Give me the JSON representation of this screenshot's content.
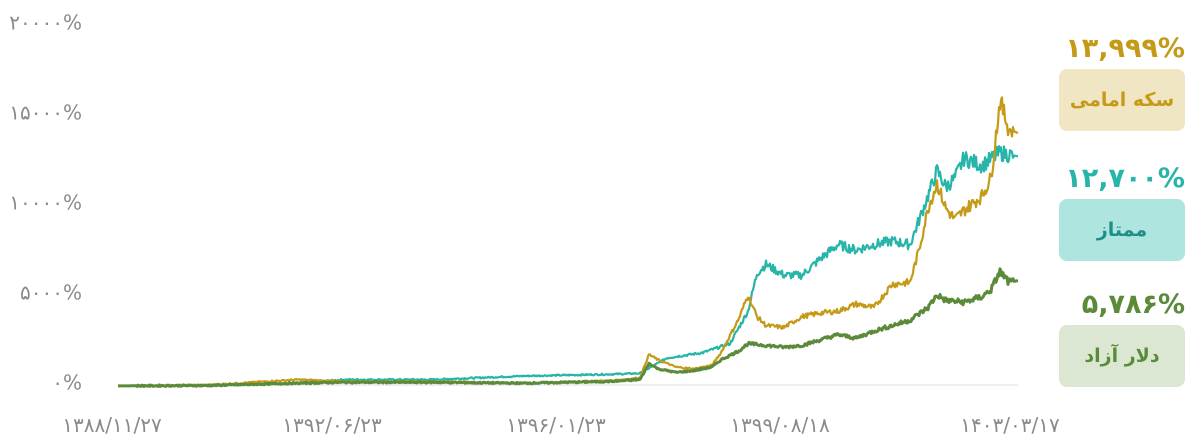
{
  "chart_data": {
    "type": "line",
    "ylim": [
      0,
      20000
    ],
    "y_ticks": [
      {
        "value": 20000,
        "label": "۲۰۰۰۰%"
      },
      {
        "value": 15000,
        "label": "۱۵۰۰۰%"
      },
      {
        "value": 10000,
        "label": "۱۰۰۰۰%"
      },
      {
        "value": 5000,
        "label": "۵۰۰۰%"
      },
      {
        "value": 0,
        "label": "۰%"
      }
    ],
    "x_ticks": [
      "۱۳۸۸/۱۱/۲۷",
      "۱۳۹۲/۰۶/۲۳",
      "۱۳۹۶/۰۱/۲۳",
      "۱۳۹۹/۰۸/۱۸",
      "۱۴۰۳/۰۳/۱۷"
    ],
    "x_range": [
      0,
      100
    ],
    "series": [
      {
        "name": "ممتاز",
        "color": "#26b5a8",
        "final_value": "۱۲,۷۰۰%",
        "points": [
          [
            0,
            -50
          ],
          [
            10,
            -20
          ],
          [
            20,
            100
          ],
          [
            25,
            300
          ],
          [
            35,
            300
          ],
          [
            45,
            500
          ],
          [
            55,
            600
          ],
          [
            58,
            650
          ],
          [
            61,
            1500
          ],
          [
            65,
            1800
          ],
          [
            68,
            2300
          ],
          [
            70,
            4100
          ],
          [
            71,
            6200
          ],
          [
            72,
            6700
          ],
          [
            74,
            6100
          ],
          [
            76,
            6100
          ],
          [
            78,
            7000
          ],
          [
            80,
            7800
          ],
          [
            82,
            7500
          ],
          [
            84,
            7800
          ],
          [
            86,
            8000
          ],
          [
            88,
            7800
          ],
          [
            90,
            10500
          ],
          [
            91,
            11900
          ],
          [
            92,
            11000
          ],
          [
            93,
            11500
          ],
          [
            94,
            12600
          ],
          [
            96,
            12200
          ],
          [
            98,
            12900
          ],
          [
            100,
            12700
          ]
        ]
      },
      {
        "name": "سکه امامی",
        "color": "#c49a17",
        "final_value": "۱۳,۹۹۹%",
        "points": [
          [
            0,
            -50
          ],
          [
            10,
            0
          ],
          [
            20,
            300
          ],
          [
            25,
            200
          ],
          [
            35,
            200
          ],
          [
            45,
            100
          ],
          [
            55,
            250
          ],
          [
            58,
            400
          ],
          [
            59,
            1700
          ],
          [
            60,
            1400
          ],
          [
            62,
            1000
          ],
          [
            64,
            900
          ],
          [
            66,
            1100
          ],
          [
            67,
            1800
          ],
          [
            69,
            3700
          ],
          [
            70,
            5000
          ],
          [
            71,
            3800
          ],
          [
            72,
            3300
          ],
          [
            74,
            3200
          ],
          [
            76,
            3800
          ],
          [
            78,
            4000
          ],
          [
            80,
            4100
          ],
          [
            82,
            4500
          ],
          [
            84,
            4300
          ],
          [
            86,
            5600
          ],
          [
            88,
            5700
          ],
          [
            89,
            7500
          ],
          [
            90,
            9800
          ],
          [
            91,
            11200
          ],
          [
            92,
            9800
          ],
          [
            93,
            9200
          ],
          [
            94,
            9700
          ],
          [
            96,
            10500
          ],
          [
            97,
            11500
          ],
          [
            98,
            15800
          ],
          [
            99,
            14200
          ],
          [
            100,
            14000
          ]
        ]
      },
      {
        "name": "دلار آزاد",
        "color": "#5a8a3a",
        "final_value": "۵,۷۸۶%",
        "points": [
          [
            0,
            -50
          ],
          [
            10,
            -30
          ],
          [
            20,
            100
          ],
          [
            25,
            150
          ],
          [
            35,
            150
          ],
          [
            45,
            100
          ],
          [
            55,
            200
          ],
          [
            58,
            300
          ],
          [
            59,
            1200
          ],
          [
            60,
            900
          ],
          [
            62,
            700
          ],
          [
            64,
            800
          ],
          [
            66,
            1000
          ],
          [
            67,
            1400
          ],
          [
            69,
            1900
          ],
          [
            70,
            2300
          ],
          [
            72,
            2200
          ],
          [
            74,
            2100
          ],
          [
            76,
            2200
          ],
          [
            78,
            2500
          ],
          [
            80,
            2800
          ],
          [
            82,
            2600
          ],
          [
            84,
            3000
          ],
          [
            86,
            3300
          ],
          [
            88,
            3600
          ],
          [
            90,
            4300
          ],
          [
            91,
            5000
          ],
          [
            92,
            4700
          ],
          [
            94,
            4600
          ],
          [
            96,
            4900
          ],
          [
            97,
            5300
          ],
          [
            98,
            6300
          ],
          [
            99,
            5700
          ],
          [
            100,
            5800
          ]
        ]
      }
    ]
  },
  "legend": [
    {
      "value": "۱۳,۹۹۹%",
      "label": "سکه امامی",
      "color": "#c49a17",
      "bg": "#f1e6c3"
    },
    {
      "value": "۱۲,۷۰۰%",
      "label": "ممتاز",
      "color": "#26b5a8",
      "bg": "#aee5df"
    },
    {
      "value": "۵,۷۸۶%",
      "label": "دلار آزاد",
      "color": "#5a8a3a",
      "bg": "#dbe7d2"
    }
  ]
}
